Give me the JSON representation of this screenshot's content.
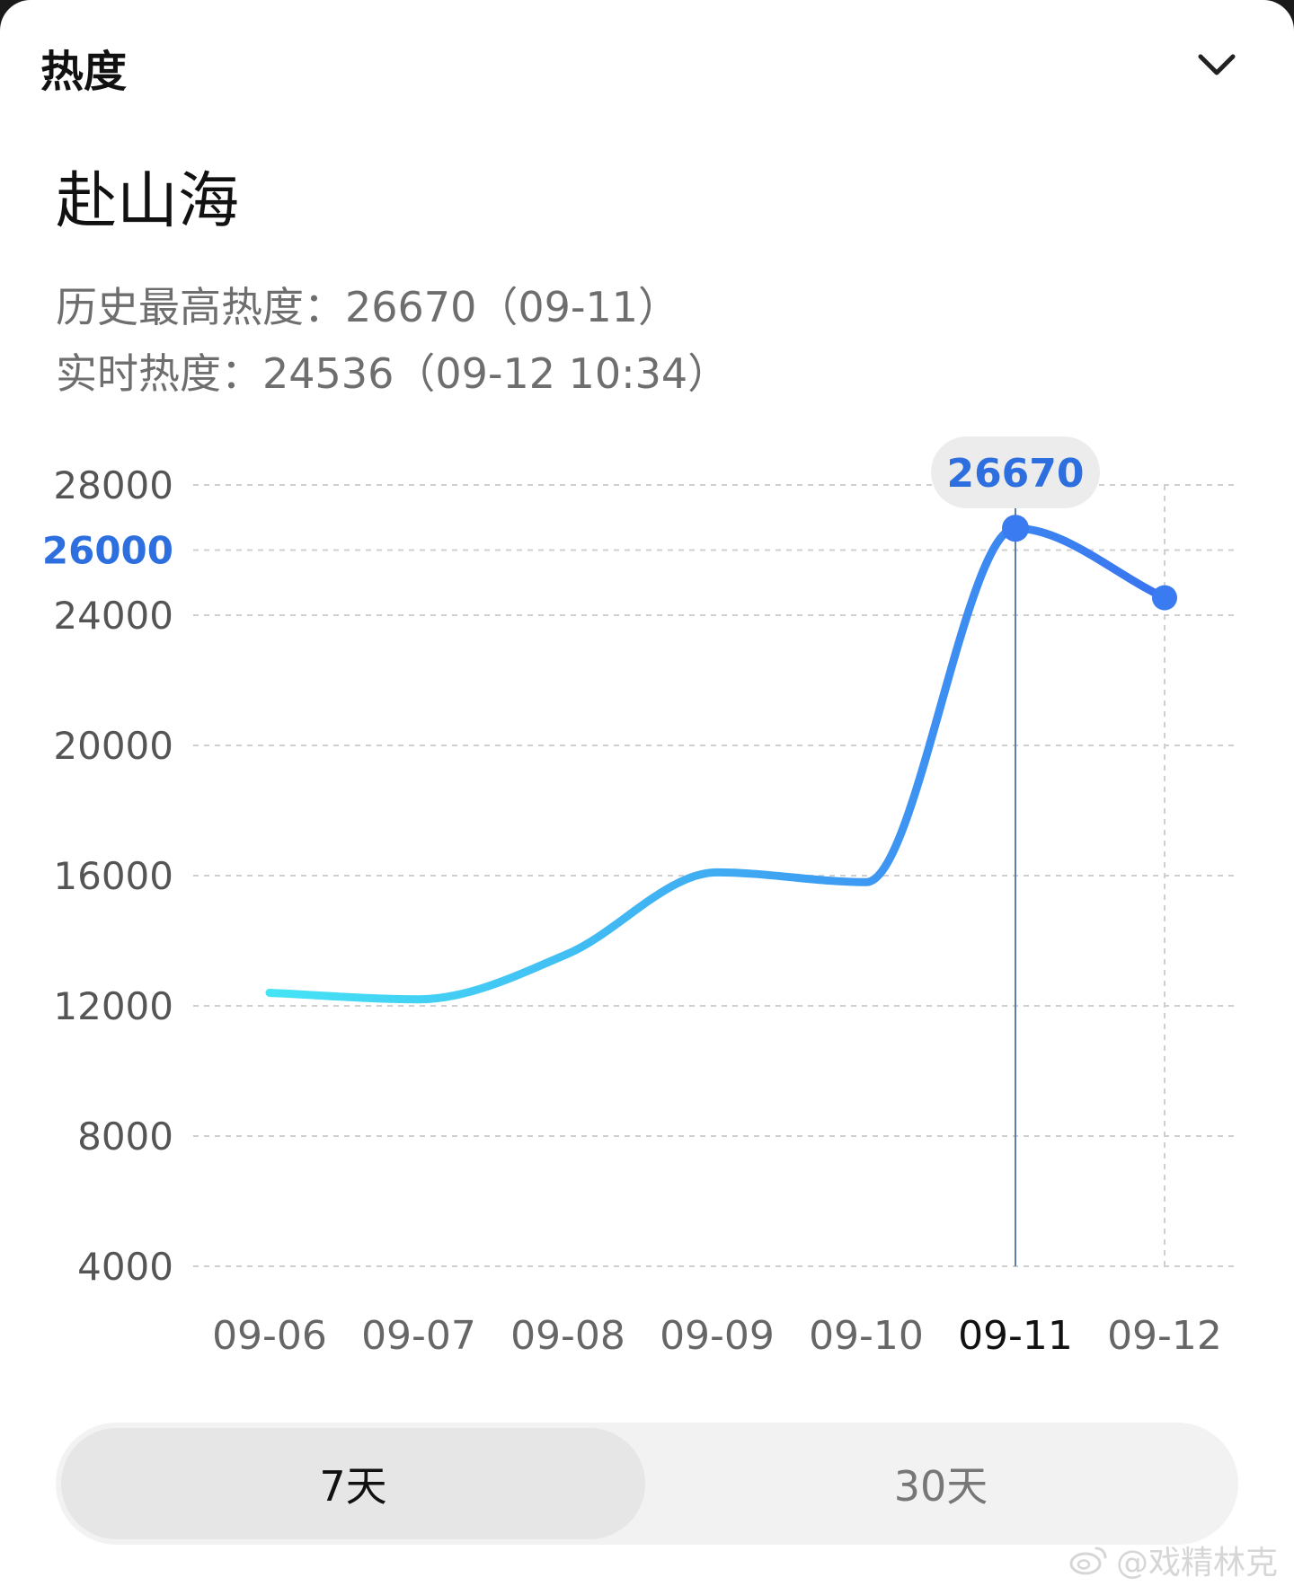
{
  "header": {
    "title": "热度"
  },
  "topic": {
    "title": "赴山海",
    "peak_line": "历史最高热度：26670（09-11）",
    "realtime_line": "实时热度：24536（09-12 10:34）"
  },
  "chart_data": {
    "type": "line",
    "x": [
      "09-06",
      "09-07",
      "09-08",
      "09-09",
      "09-10",
      "09-11",
      "09-12"
    ],
    "series": [
      {
        "values": [
          12400,
          12200,
          13600,
          16100,
          15800,
          26670,
          24536
        ]
      }
    ],
    "y_ticks": [
      {
        "label": "28000",
        "value": 28000,
        "highlight": false
      },
      {
        "label": "26000",
        "value": 26000,
        "highlight": true
      },
      {
        "label": "24000",
        "value": 24000,
        "highlight": false
      },
      {
        "label": "20000",
        "value": 20000,
        "highlight": false
      },
      {
        "label": "16000",
        "value": 16000,
        "highlight": false
      },
      {
        "label": "12000",
        "value": 12000,
        "highlight": false
      },
      {
        "label": "8000",
        "value": 8000,
        "highlight": false
      },
      {
        "label": "4000",
        "value": 4000,
        "highlight": false
      }
    ],
    "ylim": [
      4000,
      28000
    ],
    "grid": true,
    "selected_index": 5,
    "tooltip": "26670",
    "colors": {
      "line_start": "#45e4f5",
      "line_end": "#3a73f0",
      "marker": "#3b7bf2",
      "tooltip_bg": "#ececec",
      "tooltip_text": "#2e6fe0",
      "highlight_tick": "#2e6fe0"
    }
  },
  "range_tabs": [
    {
      "label": "7天",
      "active": true
    },
    {
      "label": "30天",
      "active": false
    }
  ],
  "watermark": {
    "text": "@戏精林克"
  }
}
